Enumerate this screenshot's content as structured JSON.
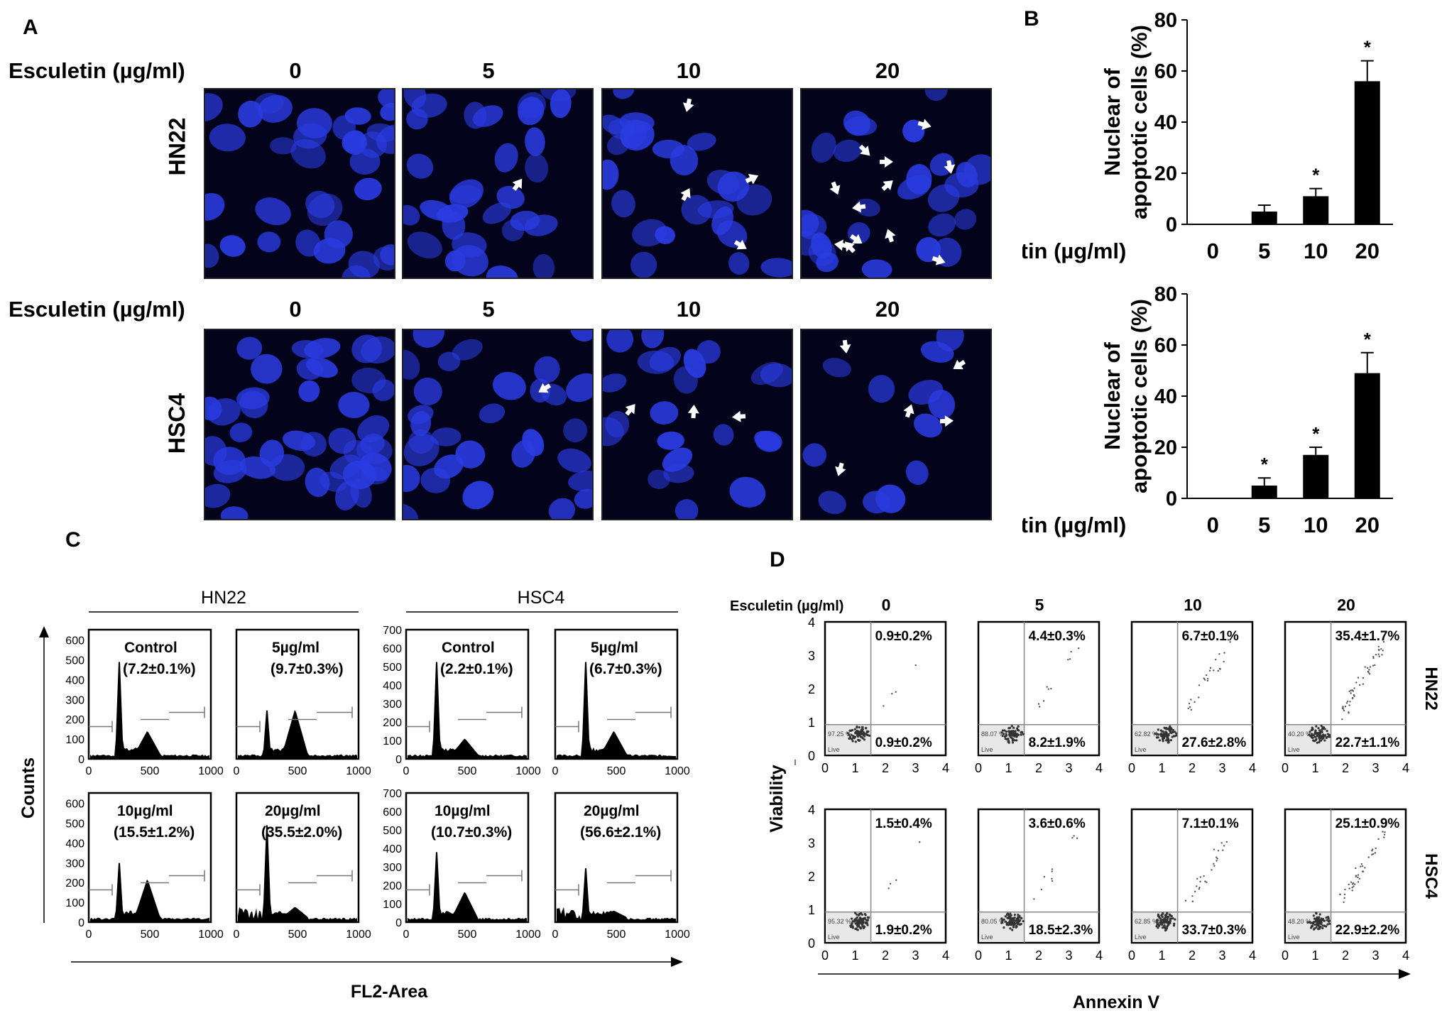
{
  "panels": {
    "A": "A",
    "B": "B",
    "C": "C",
    "D": "D"
  },
  "panelA": {
    "treatment_label": "Esculetin (µg/ml)",
    "doses": [
      "0",
      "5",
      "10",
      "20"
    ],
    "rows": [
      {
        "cell_line": "HN22"
      },
      {
        "cell_line": "HSC4"
      }
    ],
    "colors": {
      "nucleus": "#2a3be0",
      "background": "#03031c",
      "arrow": "#ffffff"
    }
  },
  "panelC": {
    "groups": [
      "HN22",
      "HSC4"
    ],
    "ylabel": "Counts",
    "xlabel": "FL2-Area",
    "plots": [
      {
        "label": "Control",
        "value": "(7.2±0.1%)"
      },
      {
        "label": "5µg/ml",
        "value": "(9.7±0.3%)"
      },
      {
        "label": "Control",
        "value": "(2.2±0.1%)"
      },
      {
        "label": "5µg/ml",
        "value": "(6.7±0.3%)"
      },
      {
        "label": "10µg/ml",
        "value": "(15.5±1.2%)"
      },
      {
        "label": "20µg/ml",
        "value": "(35.5±2.0%)"
      },
      {
        "label": "10µg/ml",
        "value": "(10.7±0.3%)"
      },
      {
        "label": "20µg/ml",
        "value": "(56.6±2.1%)"
      }
    ],
    "yticks_hn22": [
      "0",
      "100",
      "200",
      "300",
      "400",
      "500",
      "600"
    ],
    "yticks_hsc4": [
      "0",
      "100",
      "200",
      "300",
      "400",
      "500",
      "600",
      "700"
    ],
    "xticks": [
      "0",
      "500",
      "1000"
    ]
  },
  "panelD": {
    "treatment_label": "Esculetin (µg/ml)",
    "doses": [
      "0",
      "5",
      "10",
      "20"
    ],
    "rows": [
      "HN22",
      "HSC4"
    ],
    "ylabel": "Viability",
    "xlabel": "Annexin V",
    "ticks": [
      "0",
      "1",
      "2",
      "3",
      "4"
    ],
    "live_label": "Live",
    "plots": [
      {
        "upper": "0.9±0.2%",
        "lower": "0.9±0.2%",
        "live": "97.25"
      },
      {
        "upper": "4.4±0.3%",
        "lower": "8.2±1.9%",
        "live": "88.07"
      },
      {
        "upper": "6.7±0.1%",
        "lower": "27.6±2.8%",
        "live": "62.82"
      },
      {
        "upper": "35.4±1.7%",
        "lower": "22.7±1.1%",
        "live": "40.20"
      },
      {
        "upper": "1.5±0.4%",
        "lower": "1.9±0.2%",
        "live": "95.32"
      },
      {
        "upper": "3.6±0.6%",
        "lower": "18.5±2.3%",
        "live": "80.05"
      },
      {
        "upper": "7.1±0.1%",
        "lower": "33.7±0.3%",
        "live": "62.85"
      },
      {
        "upper": "25.1±0.9%",
        "lower": "22.9±2.2%",
        "live": "48.20"
      }
    ]
  },
  "chart_data": [
    {
      "type": "bar",
      "categories": [
        "0",
        "5",
        "10",
        "20"
      ],
      "values": [
        0,
        5,
        11,
        56
      ],
      "errors": [
        0,
        2.5,
        3,
        8
      ],
      "significance": [
        "",
        "",
        "*",
        "*"
      ],
      "ylabel": "Nuclear of apoptotic cells (%)",
      "xlabel": "Esculetin (µg/ml)",
      "ylim": [
        0,
        80
      ],
      "yticks": [
        "0",
        "20",
        "40",
        "60",
        "80"
      ]
    },
    {
      "type": "bar",
      "categories": [
        "0",
        "5",
        "10",
        "20"
      ],
      "values": [
        0,
        5,
        17,
        49
      ],
      "errors": [
        0,
        3,
        3,
        8
      ],
      "significance": [
        "",
        "*",
        "*",
        "*"
      ],
      "ylabel": "Nuclear of apoptotic cells (%)",
      "xlabel": "Esculetin (µg/ml)",
      "ylim": [
        0,
        80
      ],
      "yticks": [
        "0",
        "20",
        "40",
        "60",
        "80"
      ]
    }
  ]
}
